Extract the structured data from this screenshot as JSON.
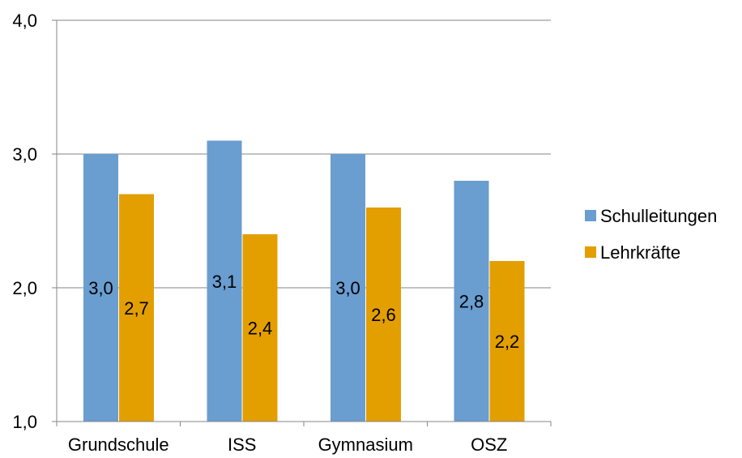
{
  "chart_data": {
    "type": "bar",
    "title": "",
    "xlabel": "",
    "ylabel": "",
    "categories": [
      "Grundschule",
      "ISS",
      "Gymnasium",
      "OSZ"
    ],
    "series": [
      {
        "name": "Schulleitungen",
        "color": "#6a9dd0",
        "values": [
          3.0,
          3.1,
          3.0,
          2.8
        ],
        "labels": [
          "3,0",
          "3,1",
          "3,0",
          "2,8"
        ]
      },
      {
        "name": "Lehrkräfte",
        "color": "#e39e00",
        "values": [
          2.7,
          2.4,
          2.6,
          2.2
        ],
        "labels": [
          "2,7",
          "2,4",
          "2,6",
          "2,2"
        ]
      }
    ],
    "ylim": [
      1.0,
      4.0
    ],
    "yticks": [
      1.0,
      2.0,
      3.0,
      4.0
    ],
    "ytick_labels": [
      "1,0",
      "2,0",
      "3,0",
      "4,0"
    ],
    "grid": true,
    "legend_position": "right"
  }
}
